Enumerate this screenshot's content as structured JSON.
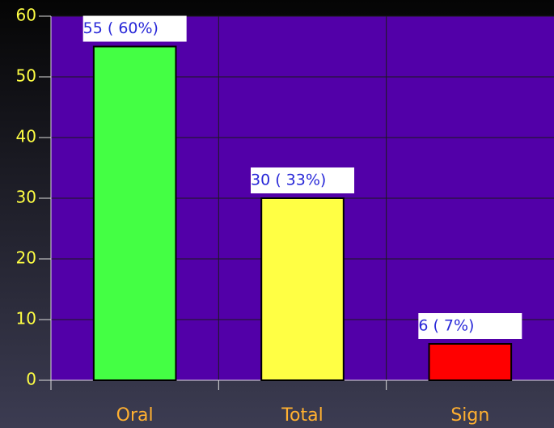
{
  "chart_data": {
    "type": "bar",
    "categories": [
      "Oral",
      "Total",
      "Sign"
    ],
    "values": [
      55,
      30,
      6
    ],
    "value_labels": [
      "55 (  60%)",
      "30 (  33%)",
      "6 (  7%)"
    ],
    "colors": [
      "#44ff44",
      "#ffff44",
      "#ff0000"
    ],
    "ylim": [
      0,
      60
    ],
    "yticks": [
      0,
      10,
      20,
      30,
      40,
      50,
      60
    ],
    "grid": true
  }
}
